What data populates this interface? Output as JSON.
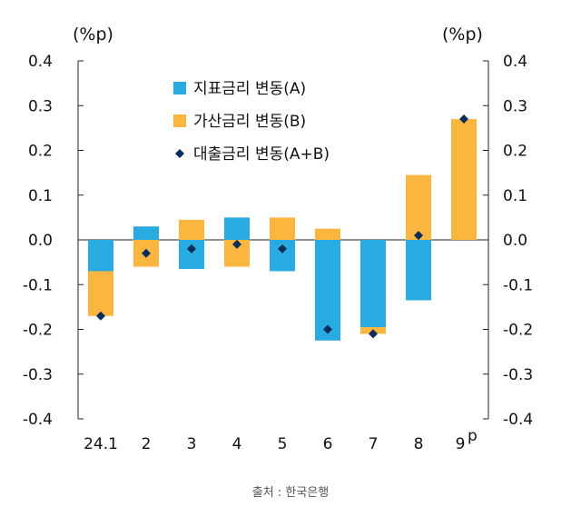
{
  "chart_data": {
    "type": "bar",
    "stacked": true,
    "unit_left": "(%p)",
    "unit_right": "(%p)",
    "categories": [
      "24.1",
      "2",
      "3",
      "4",
      "5",
      "6",
      "7",
      "8",
      "9"
    ],
    "last_category_superscript": "p",
    "ylim": [
      -0.4,
      0.4
    ],
    "yticks": [
      "0.4",
      "0.3",
      "0.2",
      "0.1",
      "0.0",
      "-0.1",
      "-0.2",
      "-0.3",
      "-0.4"
    ],
    "ytick_values": [
      0.4,
      0.3,
      0.2,
      0.1,
      0.0,
      -0.1,
      -0.2,
      -0.3,
      -0.4
    ],
    "legend_position": "top-center",
    "series": [
      {
        "name": "지표금리 변동(A)",
        "kind": "bar",
        "color": "#29ABE2",
        "values": [
          -0.07,
          0.03,
          -0.065,
          0.05,
          -0.07,
          -0.225,
          -0.195,
          -0.135,
          0.0
        ]
      },
      {
        "name": "가산금리 변동(B)",
        "kind": "bar",
        "color": "#FBB63F",
        "values": [
          -0.1,
          -0.06,
          0.045,
          -0.06,
          0.05,
          0.025,
          -0.015,
          0.145,
          0.27
        ]
      },
      {
        "name": "대출금리 변동(A+B)",
        "kind": "marker",
        "color": "#0B2D5A",
        "values": [
          -0.17,
          -0.03,
          -0.02,
          -0.01,
          -0.02,
          -0.2,
          -0.21,
          0.01,
          0.27
        ]
      }
    ]
  },
  "source_text": "출처 : 한국은행"
}
